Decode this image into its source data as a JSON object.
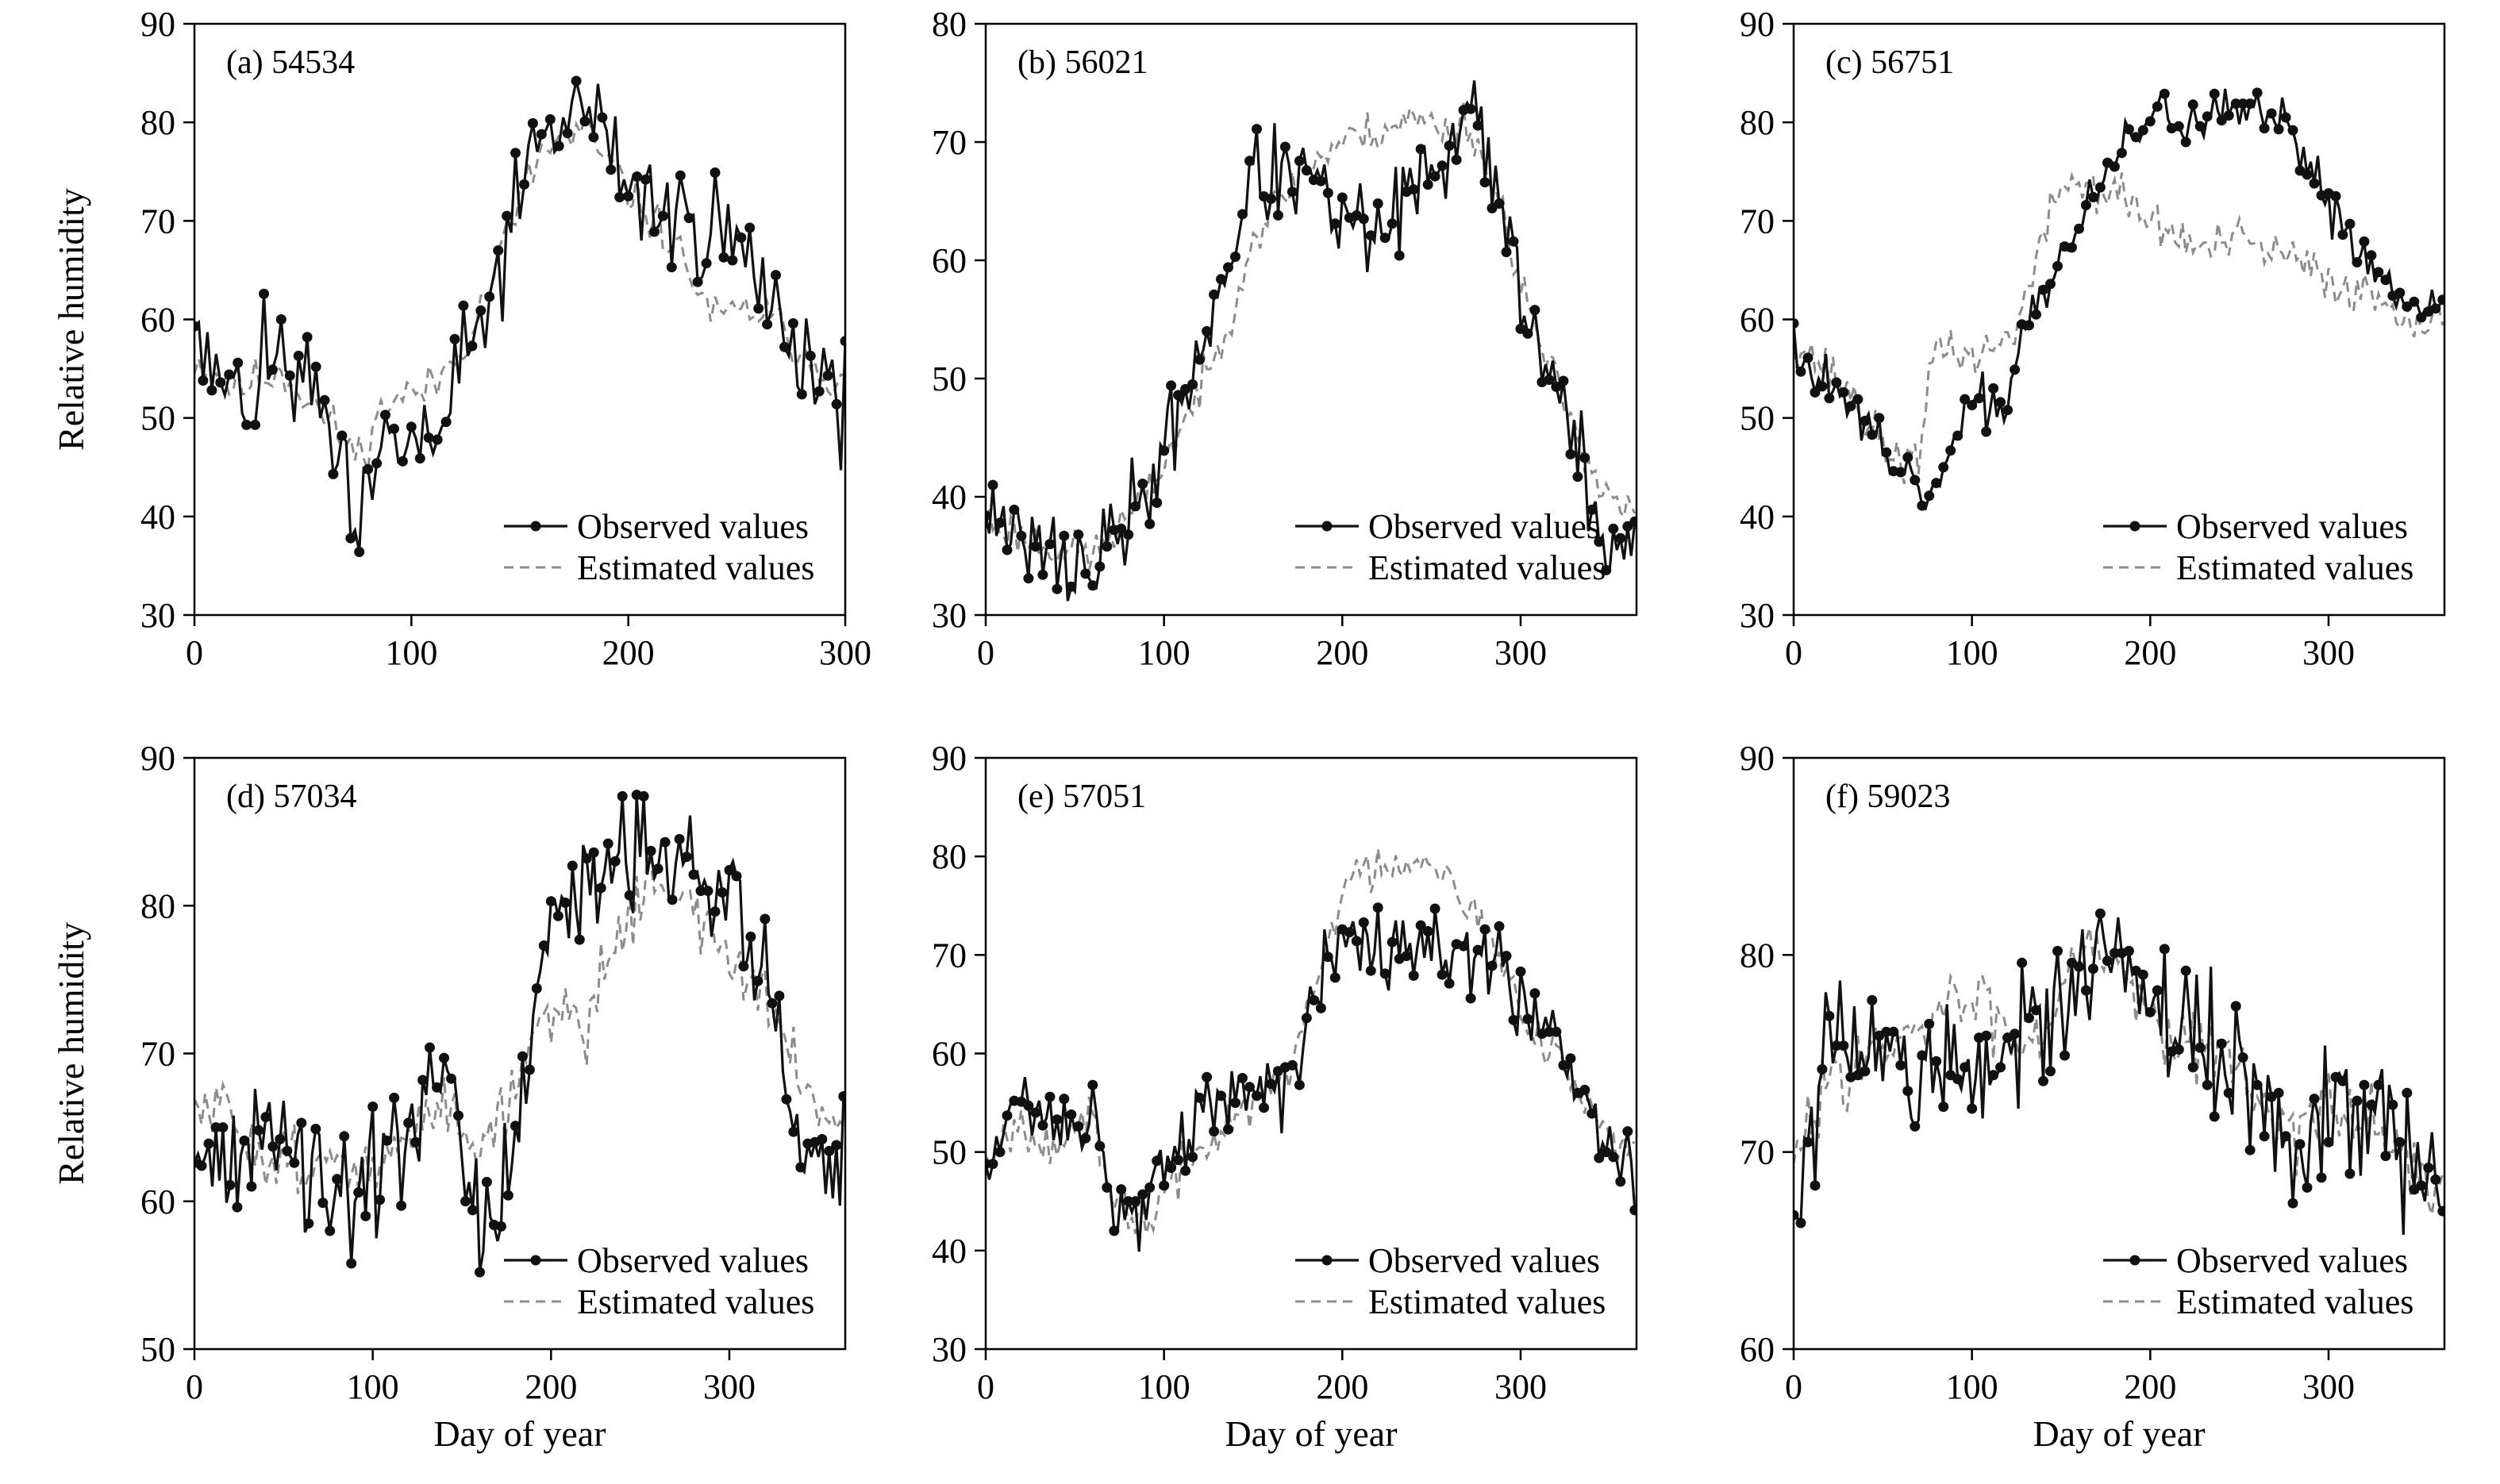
{
  "figure": {
    "y_label": "Relative humidity",
    "x_label": "Day of year"
  },
  "legend": {
    "observed": "Observed values",
    "estimated": "Estimated values"
  },
  "colors": {
    "observed": "#111111",
    "estimated": "#8c8c8c",
    "axis": "#000000"
  },
  "chart_data": [
    {
      "type": "line",
      "title": "(a) 54534",
      "xlabel": "",
      "ylabel": "Relative humidity",
      "xlim": [
        0,
        300
      ],
      "ylim": [
        30,
        90
      ],
      "xticks": [
        0,
        100,
        200,
        300
      ],
      "yticks": [
        30,
        40,
        50,
        60,
        70,
        80,
        90
      ],
      "series_anchors": {
        "observed": [
          [
            0,
            57
          ],
          [
            20,
            51
          ],
          [
            40,
            56
          ],
          [
            60,
            50
          ],
          [
            75,
            37
          ],
          [
            90,
            48
          ],
          [
            110,
            47
          ],
          [
            130,
            58
          ],
          [
            150,
            72
          ],
          [
            160,
            78
          ],
          [
            180,
            82
          ],
          [
            200,
            74
          ],
          [
            220,
            70
          ],
          [
            240,
            70
          ],
          [
            260,
            64
          ],
          [
            280,
            57
          ],
          [
            300,
            52
          ]
        ],
        "estimated": [
          [
            0,
            56
          ],
          [
            20,
            53
          ],
          [
            40,
            55
          ],
          [
            60,
            50
          ],
          [
            75,
            46
          ],
          [
            90,
            52
          ],
          [
            110,
            53
          ],
          [
            130,
            60
          ],
          [
            150,
            72
          ],
          [
            160,
            77
          ],
          [
            180,
            79
          ],
          [
            200,
            73
          ],
          [
            220,
            68
          ],
          [
            240,
            60
          ],
          [
            260,
            61
          ],
          [
            280,
            57
          ],
          [
            300,
            53
          ]
        ]
      },
      "noise_obs": 6,
      "noise_est": 2.4,
      "seed": 11
    },
    {
      "type": "line",
      "title": "(b) 56021",
      "xlabel": "",
      "ylabel": "",
      "xlim": [
        0,
        365
      ],
      "ylim": [
        30,
        80
      ],
      "xticks": [
        0,
        100,
        200,
        300
      ],
      "yticks": [
        30,
        40,
        50,
        60,
        70,
        80
      ],
      "series_anchors": {
        "observed": [
          [
            0,
            38
          ],
          [
            30,
            35
          ],
          [
            60,
            34
          ],
          [
            90,
            40
          ],
          [
            110,
            48
          ],
          [
            130,
            57
          ],
          [
            150,
            67
          ],
          [
            180,
            67
          ],
          [
            200,
            63
          ],
          [
            220,
            62
          ],
          [
            240,
            66
          ],
          [
            260,
            67
          ],
          [
            270,
            76
          ],
          [
            290,
            64
          ],
          [
            310,
            52
          ],
          [
            330,
            45
          ],
          [
            345,
            37
          ],
          [
            365,
            35
          ]
        ],
        "estimated": [
          [
            0,
            38
          ],
          [
            30,
            36
          ],
          [
            60,
            35
          ],
          [
            90,
            40
          ],
          [
            110,
            46
          ],
          [
            130,
            52
          ],
          [
            150,
            62
          ],
          [
            180,
            68
          ],
          [
            200,
            70
          ],
          [
            220,
            71
          ],
          [
            240,
            72
          ],
          [
            260,
            71
          ],
          [
            270,
            72
          ],
          [
            290,
            64
          ],
          [
            310,
            53
          ],
          [
            330,
            46
          ],
          [
            345,
            41
          ],
          [
            365,
            38
          ]
        ]
      },
      "noise_obs": 4,
      "noise_est": 1.8,
      "seed": 23
    },
    {
      "type": "line",
      "title": "(c) 56751",
      "xlabel": "",
      "ylabel": "",
      "xlim": [
        0,
        365
      ],
      "ylim": [
        30,
        90
      ],
      "xticks": [
        0,
        100,
        200,
        300
      ],
      "yticks": [
        30,
        40,
        50,
        60,
        70,
        80,
        90
      ],
      "series_anchors": {
        "observed": [
          [
            0,
            57
          ],
          [
            30,
            52
          ],
          [
            50,
            46
          ],
          [
            70,
            42
          ],
          [
            80,
            43
          ],
          [
            100,
            51
          ],
          [
            120,
            52
          ],
          [
            130,
            60
          ],
          [
            150,
            66
          ],
          [
            180,
            76
          ],
          [
            200,
            81
          ],
          [
            230,
            80
          ],
          [
            250,
            81
          ],
          [
            280,
            79
          ],
          [
            300,
            72
          ],
          [
            330,
            64
          ],
          [
            365,
            61
          ]
        ],
        "estimated": [
          [
            0,
            58
          ],
          [
            30,
            53
          ],
          [
            50,
            47
          ],
          [
            70,
            45
          ],
          [
            80,
            58
          ],
          [
            100,
            56
          ],
          [
            120,
            58
          ],
          [
            130,
            62
          ],
          [
            150,
            74
          ],
          [
            180,
            73
          ],
          [
            200,
            70
          ],
          [
            230,
            67
          ],
          [
            250,
            68
          ],
          [
            280,
            66
          ],
          [
            300,
            64
          ],
          [
            330,
            62
          ],
          [
            365,
            59
          ]
        ]
      },
      "noise_obs": 2.6,
      "noise_est": 2.4,
      "seed": 37
    },
    {
      "type": "line",
      "title": "(d) 57034",
      "xlabel": "Day of year",
      "ylabel": "Relative humidity",
      "xlim": [
        0,
        365
      ],
      "ylim": [
        50,
        90
      ],
      "xticks": [
        0,
        100,
        200,
        300
      ],
      "yticks": [
        50,
        60,
        70,
        80,
        90
      ],
      "series_anchors": {
        "observed": [
          [
            0,
            63
          ],
          [
            20,
            63
          ],
          [
            40,
            65
          ],
          [
            60,
            62
          ],
          [
            80,
            59
          ],
          [
            100,
            61
          ],
          [
            120,
            64
          ],
          [
            140,
            68
          ],
          [
            160,
            58
          ],
          [
            180,
            63
          ],
          [
            190,
            72
          ],
          [
            200,
            77
          ],
          [
            220,
            81
          ],
          [
            240,
            84
          ],
          [
            260,
            85
          ],
          [
            280,
            82
          ],
          [
            300,
            80
          ],
          [
            320,
            76
          ],
          [
            340,
            63
          ],
          [
            365,
            63
          ]
        ],
        "estimated": [
          [
            0,
            66
          ],
          [
            20,
            66
          ],
          [
            40,
            63
          ],
          [
            60,
            63
          ],
          [
            80,
            62
          ],
          [
            100,
            62
          ],
          [
            120,
            64
          ],
          [
            140,
            67
          ],
          [
            160,
            64
          ],
          [
            180,
            67
          ],
          [
            190,
            72
          ],
          [
            200,
            73
          ],
          [
            220,
            72
          ],
          [
            240,
            79
          ],
          [
            260,
            82
          ],
          [
            280,
            80
          ],
          [
            300,
            76
          ],
          [
            320,
            74
          ],
          [
            340,
            68
          ],
          [
            365,
            65
          ]
        ]
      },
      "noise_obs": 4.2,
      "noise_est": 2.2,
      "seed": 51
    },
    {
      "type": "line",
      "title": "(e) 57051",
      "xlabel": "Day of year",
      "ylabel": "",
      "xlim": [
        0,
        365
      ],
      "ylim": [
        30,
        90
      ],
      "xticks": [
        0,
        100,
        200,
        300
      ],
      "yticks": [
        30,
        40,
        50,
        60,
        70,
        80,
        90
      ],
      "series_anchors": {
        "observed": [
          [
            0,
            48
          ],
          [
            20,
            55
          ],
          [
            40,
            52
          ],
          [
            60,
            55
          ],
          [
            70,
            44
          ],
          [
            90,
            44
          ],
          [
            110,
            50
          ],
          [
            130,
            55
          ],
          [
            150,
            56
          ],
          [
            170,
            55
          ],
          [
            190,
            70
          ],
          [
            200,
            73
          ],
          [
            220,
            72
          ],
          [
            240,
            72
          ],
          [
            260,
            70
          ],
          [
            280,
            70
          ],
          [
            300,
            66
          ],
          [
            320,
            62
          ],
          [
            340,
            54
          ],
          [
            365,
            48
          ]
        ],
        "estimated": [
          [
            0,
            50
          ],
          [
            20,
            53
          ],
          [
            40,
            51
          ],
          [
            60,
            53
          ],
          [
            70,
            45
          ],
          [
            90,
            43
          ],
          [
            110,
            48
          ],
          [
            130,
            52
          ],
          [
            150,
            55
          ],
          [
            170,
            58
          ],
          [
            190,
            70
          ],
          [
            200,
            77
          ],
          [
            220,
            79
          ],
          [
            240,
            80
          ],
          [
            260,
            79
          ],
          [
            280,
            72
          ],
          [
            300,
            65
          ],
          [
            320,
            60
          ],
          [
            340,
            54
          ],
          [
            365,
            49
          ]
        ]
      },
      "noise_obs": 4,
      "noise_est": 2.4,
      "seed": 67
    },
    {
      "type": "line",
      "title": "(f) 59023",
      "xlabel": "Day of year",
      "ylabel": "",
      "xlim": [
        0,
        365
      ],
      "ylim": [
        60,
        90
      ],
      "xticks": [
        0,
        100,
        200,
        300
      ],
      "yticks": [
        60,
        70,
        80,
        90
      ],
      "series_anchors": {
        "observed": [
          [
            0,
            65
          ],
          [
            20,
            75
          ],
          [
            40,
            76
          ],
          [
            60,
            74
          ],
          [
            80,
            75
          ],
          [
            100,
            74
          ],
          [
            120,
            75
          ],
          [
            140,
            76
          ],
          [
            160,
            78
          ],
          [
            180,
            80
          ],
          [
            200,
            77
          ],
          [
            220,
            76
          ],
          [
            240,
            75
          ],
          [
            260,
            73
          ],
          [
            280,
            70
          ],
          [
            300,
            72
          ],
          [
            320,
            72
          ],
          [
            340,
            70
          ],
          [
            365,
            67
          ]
        ],
        "estimated": [
          [
            0,
            69
          ],
          [
            20,
            74
          ],
          [
            40,
            75
          ],
          [
            60,
            75
          ],
          [
            80,
            77
          ],
          [
            100,
            78
          ],
          [
            120,
            76
          ],
          [
            140,
            76
          ],
          [
            160,
            81
          ],
          [
            180,
            80
          ],
          [
            200,
            77
          ],
          [
            220,
            76
          ],
          [
            240,
            75
          ],
          [
            260,
            73
          ],
          [
            280,
            71
          ],
          [
            300,
            72
          ],
          [
            320,
            72
          ],
          [
            340,
            70
          ],
          [
            365,
            68
          ]
        ]
      },
      "noise_obs": 3.6,
      "noise_est": 1.8,
      "seed": 83
    }
  ]
}
